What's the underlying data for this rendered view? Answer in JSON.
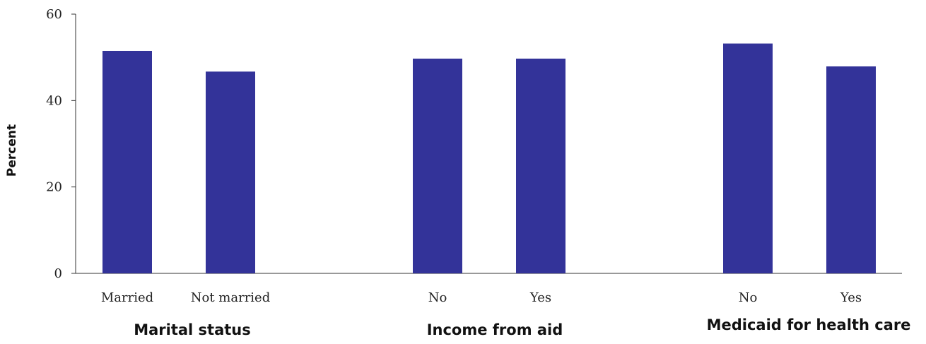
{
  "chart_data": {
    "type": "bar",
    "ylabel": "Percent",
    "ylim": [
      0,
      60
    ],
    "yticks": [
      0,
      20,
      40,
      60
    ],
    "grid": false,
    "color": "#333399",
    "groups": [
      {
        "title": "Marital status",
        "categories": [
          "Married",
          "Not married"
        ],
        "values": [
          51.5,
          46.7
        ]
      },
      {
        "title": "Income from aid",
        "categories": [
          "No",
          "Yes"
        ],
        "values": [
          49.7,
          49.7
        ]
      },
      {
        "title": "Medicaid for health care",
        "categories": [
          "No",
          "Yes"
        ],
        "values": [
          53.2,
          47.9
        ]
      }
    ]
  }
}
